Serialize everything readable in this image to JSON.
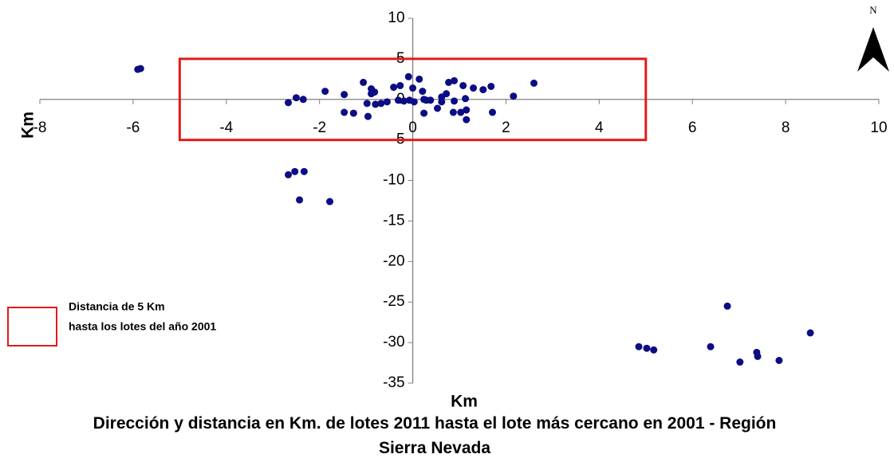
{
  "chart_data": {
    "type": "scatter",
    "title": "Dirección y distancia en Km. de lotes 2011 hasta el lote más cercano en 2001 - Región Sierra Nevada",
    "xlabel": "Km",
    "ylabel": "Km",
    "color": "#0c0c84",
    "x": [
      -5.9,
      -5.84,
      -2.67,
      -2.53,
      -2.33,
      -2.43,
      -1.78,
      -2.67,
      -2.5,
      -2.35,
      -1.88,
      -1.47,
      -1.47,
      -1.27,
      -1.06,
      -0.89,
      -0.89,
      -0.82,
      -0.98,
      -0.8,
      -0.68,
      -0.96,
      -0.55,
      -0.41,
      -0.27,
      -0.31,
      -0.19,
      -0.09,
      0,
      -0.07,
      0.03,
      0.14,
      0.21,
      0.24,
      0.29,
      0.38,
      0.24,
      0.53,
      0.62,
      0.62,
      0.72,
      0.77,
      0.89,
      0.89,
      0.87,
      1.03,
      1.08,
      1.13,
      1.15,
      1.15,
      1.3,
      1.51,
      1.68,
      1.71,
      2.16,
      2.6,
      4.85,
      5.02,
      5.17,
      6.39,
      6.75,
      7.02,
      7.38,
      7.4,
      7.86,
      8.53
    ],
    "y": [
      3.7,
      3.8,
      -9.3,
      -8.9,
      -8.9,
      -12.4,
      -12.6,
      -0.4,
      0.2,
      0,
      1.0,
      0.6,
      -1.6,
      -1.7,
      2.1,
      1.3,
      0.7,
      0.9,
      -0.5,
      -0.6,
      -0.5,
      -2.1,
      -0.3,
      1.5,
      1.7,
      -0.1,
      -0.2,
      2.8,
      1.4,
      -0.1,
      -0.3,
      2.5,
      1.0,
      0,
      -0.1,
      -0.1,
      -1.7,
      -1.1,
      0.3,
      -0.3,
      0.7,
      2.1,
      2.3,
      -0.2,
      -1.6,
      -1.6,
      1.7,
      0.1,
      -1.3,
      -2.5,
      1.4,
      1.2,
      1.6,
      -1.6,
      0.4,
      2.0,
      -30.5,
      -30.7,
      -30.9,
      -30.5,
      -25.5,
      -32.4,
      -31.2,
      -31.7,
      -32.2,
      -28.8
    ],
    "xlim": [
      -8,
      10
    ],
    "xticks": [
      -8,
      -6,
      -4,
      -2,
      0,
      2,
      4,
      6,
      8,
      10
    ],
    "ylim": [
      -35,
      10
    ],
    "yticks": [
      -35,
      -30,
      -25,
      -20,
      -15,
      -10,
      -5,
      0,
      5,
      10
    ],
    "grid": false,
    "highlight_box": {
      "x": [
        -5,
        5
      ],
      "y": [
        -5,
        5
      ],
      "color": "#e31a1a"
    },
    "legend_text": [
      "Distancia de 5 Km",
      "hasta los lotes del año 2001"
    ],
    "annotation": "N"
  }
}
